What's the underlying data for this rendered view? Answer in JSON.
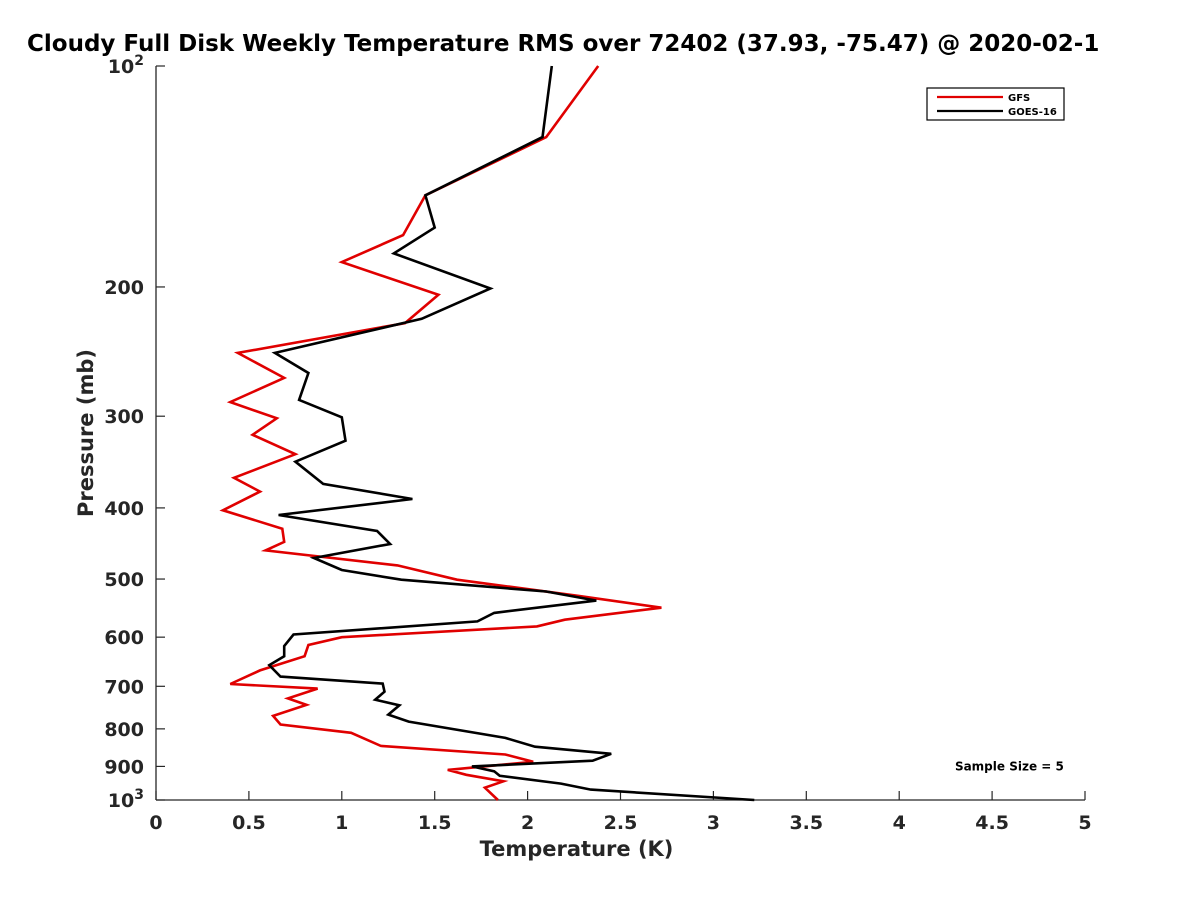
{
  "chart_data": {
    "type": "line",
    "title": "Cloudy Full Disk Weekly Temperature RMS over 72402 (37.93, -75.47) @ 2020-02-1",
    "xlabel": "Temperature (K)",
    "ylabel": "Pressure (mb)",
    "xlim": [
      0,
      5
    ],
    "ylim": [
      100,
      1000
    ],
    "y_scale": "log",
    "y_reversed": true,
    "grid": false,
    "legend_position": "top-right",
    "x_ticks": [
      0,
      0.5,
      1,
      1.5,
      2,
      2.5,
      3,
      3.5,
      4,
      4.5,
      5
    ],
    "x_tick_labels": [
      "0",
      "0.5",
      "1",
      "1.5",
      "2",
      "2.5",
      "3",
      "3.5",
      "4",
      "4.5",
      "5"
    ],
    "y_ticks": [
      {
        "value": 100,
        "base": "10",
        "exp": "2",
        "label": ""
      },
      {
        "value": 200,
        "label": "200"
      },
      {
        "value": 300,
        "label": "300"
      },
      {
        "value": 400,
        "label": "400"
      },
      {
        "value": 500,
        "label": "500"
      },
      {
        "value": 600,
        "label": "600"
      },
      {
        "value": 700,
        "label": "700"
      },
      {
        "value": 800,
        "label": "800"
      },
      {
        "value": 900,
        "label": "900"
      },
      {
        "value": 1000,
        "base": "10",
        "exp": "3",
        "label": ""
      }
    ],
    "series": [
      {
        "name": "GFS",
        "color": "#e00000",
        "points": [
          [
            2.38,
            100
          ],
          [
            2.1,
            125
          ],
          [
            1.45,
            150
          ],
          [
            1.33,
            170
          ],
          [
            1.0,
            185
          ],
          [
            1.52,
            205
          ],
          [
            1.34,
            224
          ],
          [
            0.44,
            246
          ],
          [
            0.69,
            266
          ],
          [
            0.4,
            287
          ],
          [
            0.65,
            302
          ],
          [
            0.52,
            318
          ],
          [
            0.75,
            338
          ],
          [
            0.42,
            364
          ],
          [
            0.56,
            380
          ],
          [
            0.36,
            403
          ],
          [
            0.68,
            427
          ],
          [
            0.69,
            445
          ],
          [
            0.59,
            457
          ],
          [
            1.3,
            479
          ],
          [
            1.62,
            501
          ],
          [
            2.27,
            527
          ],
          [
            2.72,
            547
          ],
          [
            2.2,
            568
          ],
          [
            2.05,
            580
          ],
          [
            1.0,
            600
          ],
          [
            0.82,
            615
          ],
          [
            0.8,
            637
          ],
          [
            0.56,
            666
          ],
          [
            0.4,
            695
          ],
          [
            0.87,
            705
          ],
          [
            0.71,
            727
          ],
          [
            0.81,
            742
          ],
          [
            0.63,
            768
          ],
          [
            0.67,
            789
          ],
          [
            1.05,
            810
          ],
          [
            1.21,
            844
          ],
          [
            1.88,
            867
          ],
          [
            2.03,
            887
          ],
          [
            1.57,
            910
          ],
          [
            1.67,
            924
          ],
          [
            1.87,
            943
          ],
          [
            1.77,
            962
          ],
          [
            1.84,
            1000
          ]
        ]
      },
      {
        "name": "GOES-16",
        "color": "#000000",
        "points": [
          [
            2.13,
            100
          ],
          [
            2.08,
            125
          ],
          [
            1.45,
            150
          ],
          [
            1.5,
            166
          ],
          [
            1.28,
            180
          ],
          [
            1.8,
            201
          ],
          [
            1.43,
            221
          ],
          [
            0.64,
            246
          ],
          [
            0.82,
            262
          ],
          [
            0.77,
            285
          ],
          [
            1.0,
            301
          ],
          [
            1.02,
            324
          ],
          [
            0.75,
            346
          ],
          [
            0.9,
            371
          ],
          [
            1.38,
            389
          ],
          [
            0.66,
            409
          ],
          [
            1.19,
            430
          ],
          [
            1.26,
            448
          ],
          [
            0.85,
            468
          ],
          [
            1.0,
            486
          ],
          [
            1.32,
            501
          ],
          [
            2.1,
            520
          ],
          [
            2.37,
            535
          ],
          [
            1.82,
            556
          ],
          [
            1.73,
            571
          ],
          [
            0.74,
            595
          ],
          [
            0.69,
            617
          ],
          [
            0.69,
            637
          ],
          [
            0.61,
            655
          ],
          [
            0.67,
            679
          ],
          [
            1.22,
            694
          ],
          [
            1.23,
            712
          ],
          [
            1.18,
            730
          ],
          [
            1.31,
            743
          ],
          [
            1.25,
            765
          ],
          [
            1.36,
            782
          ],
          [
            1.88,
            823
          ],
          [
            2.04,
            846
          ],
          [
            2.45,
            865
          ],
          [
            2.35,
            884
          ],
          [
            1.7,
            900
          ],
          [
            1.82,
            914
          ],
          [
            1.85,
            927
          ],
          [
            2.18,
            950
          ],
          [
            2.34,
            968
          ],
          [
            3.22,
            1000
          ]
        ]
      }
    ],
    "annotations": [
      {
        "text": "Sample Size = 5",
        "x": 4.3,
        "y": 900
      }
    ]
  }
}
